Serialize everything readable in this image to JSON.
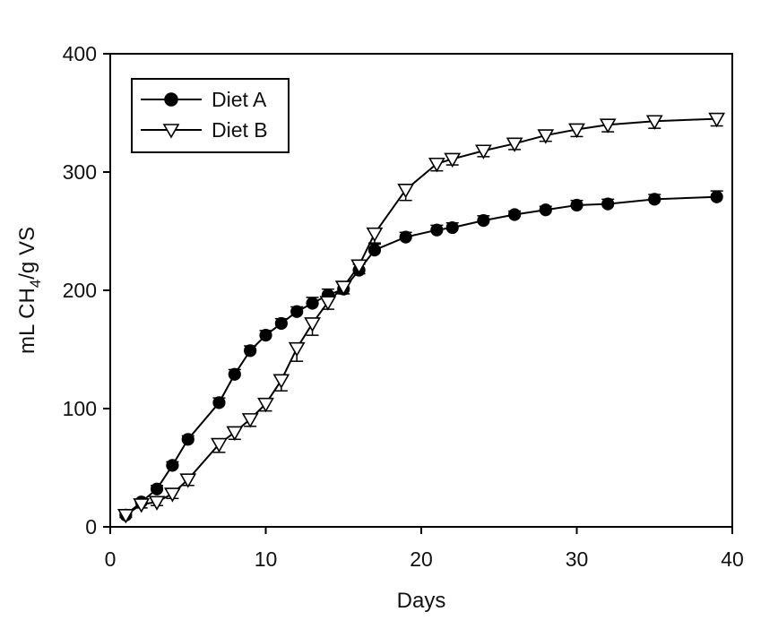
{
  "chart_data": {
    "type": "line",
    "xlabel": "Days",
    "ylabel": "mL CH4/g VS",
    "ylabel_prefix": "mL CH",
    "ylabel_sub": "4",
    "ylabel_suffix": "/g VS",
    "xlim": [
      0,
      40
    ],
    "ylim": [
      0,
      400
    ],
    "xticks": [
      0,
      10,
      20,
      30,
      40
    ],
    "yticks": [
      0,
      100,
      200,
      300,
      400
    ],
    "grid": false,
    "legend_position": "top-left",
    "series": [
      {
        "name": "Diet A",
        "marker": "filled-circle",
        "x": [
          1,
          2,
          3,
          4,
          5,
          7,
          8,
          9,
          10,
          11,
          12,
          13,
          14,
          15,
          16,
          17,
          19,
          21,
          22,
          24,
          26,
          28,
          30,
          32,
          35,
          39
        ],
        "y": [
          10,
          21,
          32,
          52,
          74,
          105,
          129,
          149,
          162,
          172,
          182,
          189,
          196,
          201,
          217,
          234,
          245,
          251,
          253,
          259,
          264,
          268,
          272,
          273,
          277,
          279
        ],
        "err": [
          2,
          2,
          3,
          3,
          3,
          4,
          4,
          4,
          4,
          4,
          4,
          5,
          5,
          5,
          5,
          5,
          4,
          4,
          4,
          4,
          3,
          3,
          4,
          4,
          4,
          5
        ]
      },
      {
        "name": "Diet B",
        "marker": "open-down-triangle",
        "x": [
          1,
          2,
          3,
          4,
          5,
          7,
          8,
          9,
          10,
          11,
          12,
          13,
          14,
          15,
          16,
          17,
          19,
          21,
          22,
          24,
          26,
          28,
          30,
          32,
          35,
          39
        ],
        "y": [
          10,
          19,
          21,
          28,
          40,
          70,
          80,
          91,
          104,
          124,
          151,
          172,
          190,
          203,
          221,
          248,
          285,
          307,
          311,
          318,
          324,
          331,
          336,
          340,
          343,
          345
        ],
        "err": [
          2,
          3,
          3,
          4,
          5,
          7,
          6,
          6,
          6,
          9,
          11,
          10,
          6,
          6,
          7,
          8,
          9,
          6,
          5,
          5,
          5,
          5,
          6,
          6,
          6,
          6
        ]
      }
    ]
  }
}
